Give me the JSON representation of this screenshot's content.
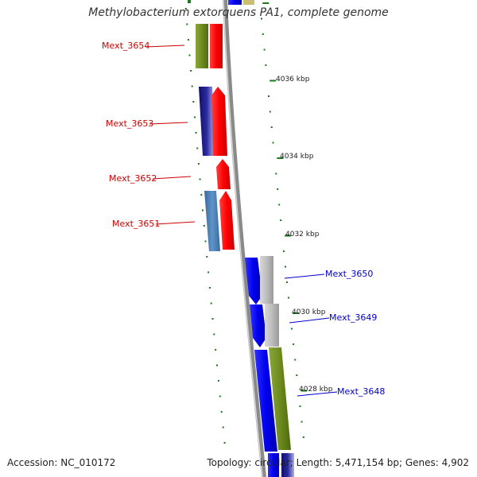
{
  "title": "Methylobacterium extorquens PA1, complete genome",
  "footer": {
    "accession": "Accession: NC_010172",
    "summary": "Topology: circular; Length: 5,471,154 bp; Genes: 4,902"
  },
  "colors": {
    "red": "#ff0000",
    "blue": "#0000ee",
    "navy": "#1a1a8c",
    "steel": "#4f82b8",
    "olive": "#6e8b1f",
    "gray": "#b8b8b8",
    "tick": "#1a7a1a"
  },
  "scale_labels": [
    "4036 kbp",
    "4034 kbp",
    "4032 kbp",
    "4030 kbp",
    "4028 kbp"
  ],
  "gene_labels_left": [
    "Mext_3654",
    "Mext_3653",
    "Mext_3652",
    "Mext_3651"
  ],
  "gene_labels_right": [
    "Mext_3650",
    "Mext_3649",
    "Mext_3648"
  ]
}
